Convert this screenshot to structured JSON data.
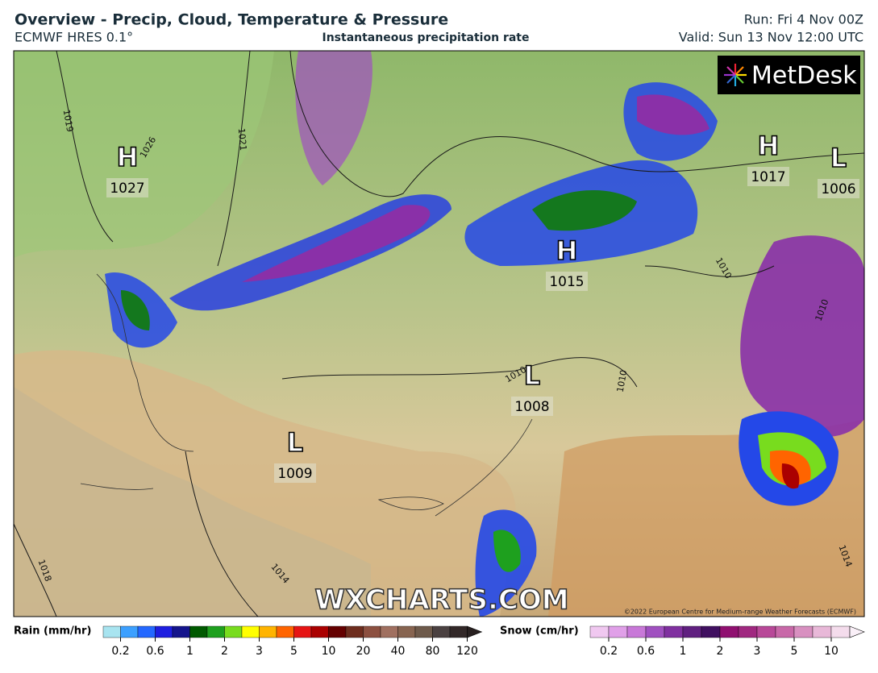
{
  "header": {
    "title": "Overview - Precip, Cloud, Temperature & Pressure",
    "model": "ECMWF HRES 0.1°",
    "subtitle": "Instantaneous precipitation rate",
    "run": "Run: Fri 4 Nov 00Z",
    "valid": "Valid: Sun 13 Nov 12:00 UTC"
  },
  "map": {
    "pressure_centers": [
      {
        "symbol": "H",
        "value": 1027
      },
      {
        "symbol": "H",
        "value": 1017
      },
      {
        "symbol": "L",
        "value": 1006
      },
      {
        "symbol": "H",
        "value": 1015
      },
      {
        "symbol": "L",
        "value": 1008
      },
      {
        "symbol": "L",
        "value": 1009
      }
    ],
    "isobar_labels": [
      1019,
      1026,
      1021,
      1010,
      1010,
      1010,
      1010,
      1018,
      1014,
      1014
    ],
    "logo": "MetDesk",
    "watermark": "WXCHARTS.COM",
    "copyright": "©2022 European Centre for Medium-range Weather Forecasts (ECMWF)"
  },
  "legend": {
    "rain": {
      "label": "Rain (mm/hr)",
      "ticks": [
        0.2,
        0.6,
        1,
        2,
        3,
        5,
        10,
        20,
        40,
        80,
        120
      ],
      "colors": [
        "#a8e4f0",
        "#3ca0ff",
        "#2468ff",
        "#1e1ee0",
        "#14148c",
        "#005a00",
        "#1ea01e",
        "#78dc1e",
        "#ffff00",
        "#ffb400",
        "#ff6400",
        "#e61414",
        "#aa0000",
        "#640000",
        "#6e2d1e",
        "#8c5040",
        "#a07060",
        "#876450",
        "#6e5a4b",
        "#4b4141",
        "#322828",
        "#282020"
      ]
    },
    "snow": {
      "label": "Snow (cm/hr)",
      "ticks": [
        0.2,
        0.6,
        1,
        2,
        3,
        5,
        10
      ],
      "colors": [
        "#f0c8f0",
        "#e0a0e8",
        "#c878d8",
        "#a050c0",
        "#8030a0",
        "#602080",
        "#401060",
        "#901070",
        "#a02880",
        "#b84898",
        "#c868a8",
        "#d890c0",
        "#e8b8d8",
        "#f4dcec",
        "#faf0f8"
      ]
    }
  }
}
